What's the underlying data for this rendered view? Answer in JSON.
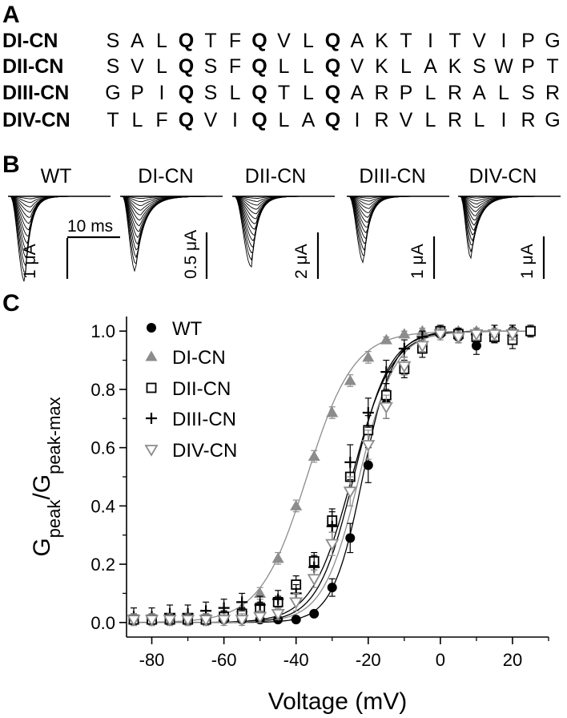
{
  "panels": {
    "a": {
      "letter": "A",
      "sequences": [
        {
          "name": "DI-CN",
          "residues": [
            "S",
            "A",
            "L",
            "Q",
            "T",
            "F",
            "Q",
            "V",
            "L",
            "Q",
            "A",
            "K",
            "T",
            "I",
            "T",
            "V",
            "I",
            "P",
            "G"
          ]
        },
        {
          "name": "DII-CN",
          "residues": [
            "S",
            "V",
            "L",
            "Q",
            "S",
            "F",
            "Q",
            "L",
            "L",
            "Q",
            "V",
            "K",
            "L",
            "A",
            "K",
            "S",
            "W",
            "P",
            "T"
          ]
        },
        {
          "name": "DIII-CN",
          "residues": [
            "G",
            "P",
            "I",
            "Q",
            "S",
            "L",
            "Q",
            "T",
            "L",
            "Q",
            "A",
            "R",
            "P",
            "L",
            "R",
            "A",
            "L",
            "S",
            "R"
          ]
        },
        {
          "name": "DIV-CN",
          "residues": [
            "T",
            "L",
            "F",
            "Q",
            "V",
            "I",
            "Q",
            "L",
            "A",
            "Q",
            "I",
            "R",
            "V",
            "L",
            "R",
            "L",
            "I",
            "R",
            "G"
          ]
        }
      ],
      "bold_positions": [
        3,
        6,
        9
      ]
    },
    "b": {
      "letter": "B",
      "traces": [
        {
          "title": "WT",
          "scale": "1 μA",
          "time_scale": "10 ms"
        },
        {
          "title": "DI-CN",
          "scale": "0.5 μA"
        },
        {
          "title": "DII-CN",
          "scale": "2 μA"
        },
        {
          "title": "DIII-CN",
          "scale": "1 μA"
        },
        {
          "title": "DIV-CN",
          "scale": "1 μA"
        }
      ]
    },
    "c": {
      "letter": "C"
    }
  },
  "chart_data": {
    "type": "scatter",
    "xlabel": "Voltage (mV)",
    "ylabel_main": "G",
    "ylabel_sub1": "peak",
    "ylabel_mid": "/G",
    "ylabel_sub2": "peak-max",
    "xlim": [
      -87,
      30
    ],
    "ylim": [
      -0.05,
      1.05
    ],
    "xticks": [
      -80,
      -60,
      -40,
      -20,
      0,
      20
    ],
    "yticks": [
      0.0,
      0.2,
      0.4,
      0.6,
      0.8,
      1.0
    ],
    "ytick_labels": [
      "0.0",
      "0.2",
      "0.4",
      "0.6",
      "0.8",
      "1.0"
    ],
    "legend_position": "top-left",
    "series": [
      {
        "name": "WT",
        "marker": "filled-circle",
        "color": "#000000",
        "fit": {
          "v_half": -21.5,
          "k": 4.2
        },
        "x": [
          -85,
          -80,
          -75,
          -70,
          -65,
          -60,
          -55,
          -50,
          -45,
          -40,
          -35,
          -30,
          -25,
          -20,
          -15,
          -10,
          -5,
          0,
          5,
          10,
          15,
          20
        ],
        "y": [
          0.01,
          0.01,
          0.01,
          0.01,
          0.01,
          0.01,
          0.01,
          0.01,
          0.01,
          0.01,
          0.03,
          0.12,
          0.29,
          0.54,
          0.75,
          0.88,
          0.95,
          0.99,
          0.98,
          0.95,
          0.98,
          1.0
        ],
        "err": [
          0.01,
          0.01,
          0.01,
          0.01,
          0.01,
          0.01,
          0.01,
          0.01,
          0.01,
          0.01,
          0.01,
          0.03,
          0.05,
          0.06,
          0.05,
          0.03,
          0.02,
          0.01,
          0.02,
          0.03,
          0.02,
          0.02
        ]
      },
      {
        "name": "DI-CN",
        "marker": "filled-triangle",
        "color": "#8c8c8c",
        "fit": {
          "v_half": -37.0,
          "k": 6.5
        },
        "x": [
          -85,
          -80,
          -75,
          -70,
          -65,
          -60,
          -55,
          -50,
          -45,
          -40,
          -35,
          -30,
          -25,
          -20,
          -15,
          -10,
          -5,
          0,
          5,
          10,
          15,
          20
        ],
        "y": [
          0.01,
          0.01,
          0.01,
          0.01,
          0.01,
          0.02,
          0.05,
          0.1,
          0.22,
          0.4,
          0.57,
          0.72,
          0.83,
          0.91,
          0.97,
          0.99,
          1.0,
          1.0,
          1.0,
          1.0,
          1.0,
          1.0
        ],
        "err": [
          0.02,
          0.02,
          0.02,
          0.02,
          0.02,
          0.02,
          0.02,
          0.02,
          0.02,
          0.02,
          0.02,
          0.02,
          0.02,
          0.02,
          0.01,
          0.01,
          0.01,
          0.01,
          0.01,
          0.01,
          0.01,
          0.01
        ]
      },
      {
        "name": "DII-CN",
        "marker": "open-square",
        "color": "#000000",
        "fit": {
          "v_half": -24.5,
          "k": 5.5
        },
        "x": [
          -85,
          -80,
          -75,
          -70,
          -65,
          -60,
          -55,
          -50,
          -45,
          -40,
          -35,
          -30,
          -25,
          -20,
          -15,
          -10,
          -5,
          0,
          5,
          10,
          15,
          20,
          25
        ],
        "y": [
          0.01,
          0.01,
          0.01,
          0.01,
          0.01,
          0.02,
          0.03,
          0.05,
          0.07,
          0.13,
          0.21,
          0.35,
          0.5,
          0.66,
          0.78,
          0.87,
          0.94,
          1.0,
          0.99,
          0.98,
          0.98,
          0.97,
          1.0
        ],
        "err": [
          0.02,
          0.02,
          0.02,
          0.02,
          0.02,
          0.02,
          0.02,
          0.02,
          0.02,
          0.03,
          0.03,
          0.04,
          0.05,
          0.05,
          0.04,
          0.03,
          0.03,
          0.02,
          0.02,
          0.02,
          0.02,
          0.03,
          0.02
        ]
      },
      {
        "name": "DIII-CN",
        "marker": "plus",
        "color": "#000000",
        "fit": {
          "v_half": -24.0,
          "k": 5.0
        },
        "x": [
          -85,
          -80,
          -75,
          -70,
          -65,
          -60,
          -55,
          -50,
          -45,
          -40,
          -35,
          -30,
          -25,
          -20,
          -15,
          -10,
          -5,
          0,
          5,
          10,
          15,
          20
        ],
        "y": [
          0.02,
          0.02,
          0.03,
          0.03,
          0.04,
          0.05,
          0.07,
          0.06,
          0.08,
          0.1,
          0.19,
          0.33,
          0.55,
          0.72,
          0.86,
          0.94,
          0.98,
          1.0,
          0.99,
          0.99,
          1.0,
          1.0
        ],
        "err": [
          0.03,
          0.03,
          0.03,
          0.03,
          0.03,
          0.03,
          0.03,
          0.03,
          0.03,
          0.03,
          0.04,
          0.05,
          0.06,
          0.05,
          0.04,
          0.03,
          0.02,
          0.01,
          0.02,
          0.02,
          0.02,
          0.02
        ]
      },
      {
        "name": "DIV-CN",
        "marker": "open-triangle-down",
        "color": "#8c8c8c",
        "fit": {
          "v_half": -22.5,
          "k": 5.0
        },
        "x": [
          -85,
          -80,
          -75,
          -70,
          -65,
          -60,
          -55,
          -50,
          -45,
          -40,
          -35,
          -30,
          -25,
          -20,
          -15,
          -10,
          -5,
          0,
          5,
          10,
          15,
          20
        ],
        "y": [
          0.01,
          0.01,
          0.01,
          0.01,
          0.01,
          0.01,
          0.01,
          0.02,
          0.03,
          0.07,
          0.15,
          0.27,
          0.45,
          0.61,
          0.74,
          0.88,
          0.95,
          0.99,
          0.98,
          0.99,
          0.99,
          0.99
        ],
        "err": [
          0.02,
          0.02,
          0.02,
          0.02,
          0.02,
          0.02,
          0.02,
          0.02,
          0.02,
          0.03,
          0.03,
          0.04,
          0.05,
          0.05,
          0.04,
          0.03,
          0.02,
          0.02,
          0.02,
          0.02,
          0.02,
          0.02
        ]
      }
    ]
  }
}
